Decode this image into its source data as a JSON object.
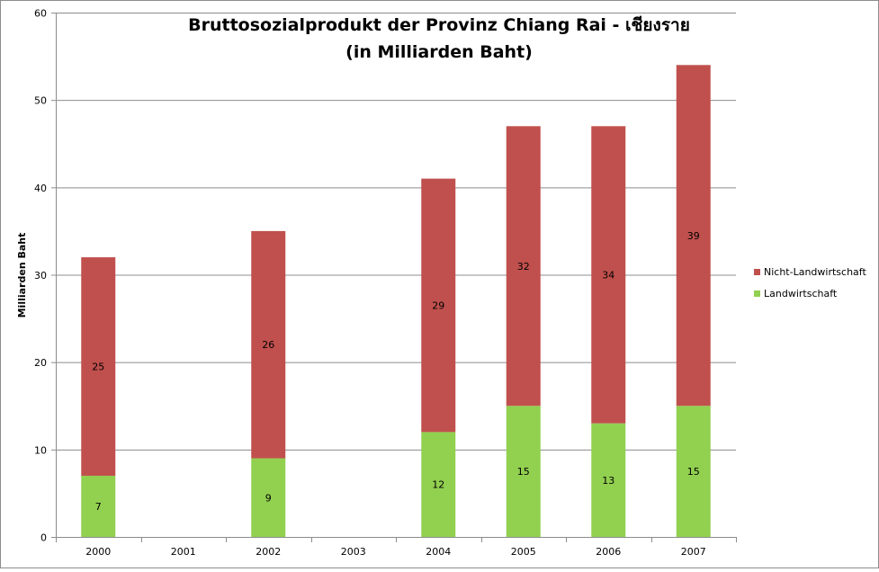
{
  "chart_data": {
    "type": "bar",
    "stacked": true,
    "title": "Bruttosozialprodukt der Provinz Chiang Rai - เชียงราย",
    "subtitle": "(in Milliarden Baht)",
    "xlabel": "",
    "ylabel": "Milliarden Baht",
    "ylim": [
      0,
      60
    ],
    "yticks": [
      "0",
      "10",
      "20",
      "30",
      "40",
      "50",
      "60"
    ],
    "grid": true,
    "legend_position": "right",
    "categories": [
      "2000",
      "2001",
      "2002",
      "2003",
      "2004",
      "2005",
      "2006",
      "2007"
    ],
    "series": [
      {
        "name": "Landwirtschaft",
        "color": "#92D050",
        "values": [
          7,
          null,
          9,
          null,
          12,
          15,
          13,
          15
        ]
      },
      {
        "name": "Nicht-Landwirtschaft",
        "color": "#C0504D",
        "values": [
          25,
          null,
          26,
          null,
          29,
          32,
          34,
          39
        ]
      }
    ]
  }
}
